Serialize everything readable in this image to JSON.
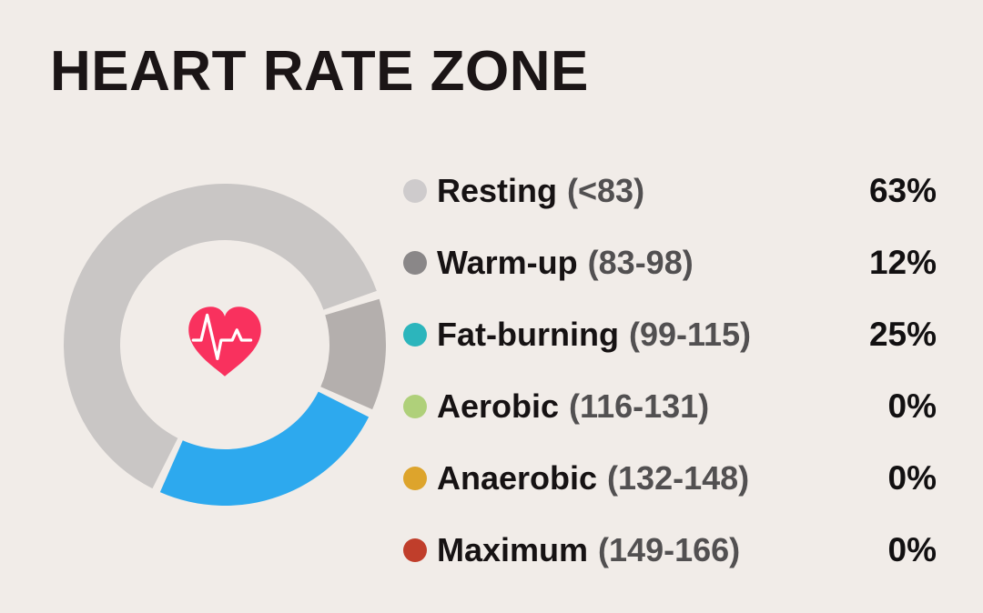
{
  "page": {
    "background_color": "#f1ece8"
  },
  "header": {
    "title": "HEART RATE ZONE"
  },
  "chart_data": {
    "type": "pie",
    "variant": "donut",
    "title": "HEART RATE ZONE",
    "unit": "%",
    "legend_position": "right",
    "zones": [
      {
        "label": "Resting",
        "range": "(<83)",
        "value": 63,
        "value_label": "63%",
        "dot_color": "#cecbcc",
        "segment_color": "#c9c6c5"
      },
      {
        "label": "Warm-up",
        "range": "(83-98)",
        "value": 12,
        "value_label": "12%",
        "dot_color": "#8a8788",
        "segment_color": "#b4afad"
      },
      {
        "label": "Fat-burning",
        "range": "(99-115)",
        "value": 25,
        "value_label": "25%",
        "dot_color": "#2cb5bc",
        "segment_color": "#2da9ee"
      },
      {
        "label": "Aerobic",
        "range": "(116-131)",
        "value": 0,
        "value_label": "0%",
        "dot_color": "#afd07a",
        "segment_color": "#afd07a"
      },
      {
        "label": "Anaerobic",
        "range": "(132-148)",
        "value": 0,
        "value_label": "0%",
        "dot_color": "#dda42c",
        "segment_color": "#dda42c"
      },
      {
        "label": "Maximum",
        "range": "(149-166)",
        "value": 0,
        "value_label": "0%",
        "dot_color": "#c03e2b",
        "segment_color": "#c03e2b"
      }
    ],
    "donut": {
      "segment_order": [
        "Warm-up",
        "Fat-burning",
        "Resting"
      ],
      "start_angle_deg": 72,
      "gap_deg": 3,
      "outer_radius": 177,
      "inner_radius": 115,
      "gap_color": "#f1ece8",
      "center_icon": "heart-pulse",
      "center_icon_color": "#f9315e",
      "pulse_line_color": "#ffffff"
    }
  }
}
